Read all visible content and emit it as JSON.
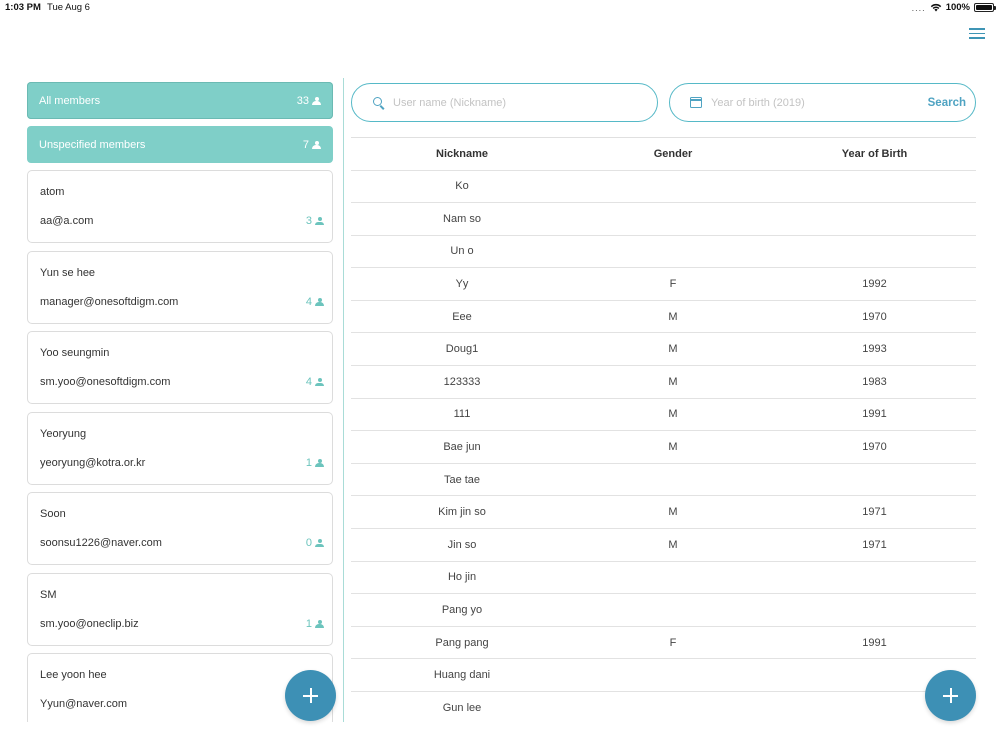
{
  "status_bar": {
    "time": "1:03 PM",
    "date": "Tue Aug 6",
    "battery": "100%",
    "signal": "....",
    "icons": [
      "wifi-icon",
      "battery-icon"
    ]
  },
  "header": {
    "menu_icon": "hamburger-menu-icon"
  },
  "groups": {
    "all": {
      "label": "All members",
      "count": "33"
    },
    "unspecified": {
      "label": "Unspecified members",
      "count": "7"
    }
  },
  "members": [
    {
      "name": "atom",
      "email": "aa@a.com",
      "count": "3"
    },
    {
      "name": "Yun se hee",
      "email": "manager@onesoftdigm.com",
      "count": "4"
    },
    {
      "name": "Yoo seungmin",
      "email": "sm.yoo@onesoftdigm.com",
      "count": "4"
    },
    {
      "name": "Yeoryung",
      "email": "yeoryung@kotra.or.kr",
      "count": "1"
    },
    {
      "name": "Soon",
      "email": "soonsu1226@naver.com",
      "count": "0"
    },
    {
      "name": "SM",
      "email": "sm.yoo@oneclip.biz",
      "count": "1"
    },
    {
      "name": "Lee yoon hee",
      "email": "Yyun@naver.com",
      "count": ""
    }
  ],
  "search": {
    "name_placeholder": "User name (Nickname)",
    "year_placeholder": "Year of birth (2019)",
    "button_label": "Search"
  },
  "table": {
    "headers": {
      "nickname": "Nickname",
      "gender": "Gender",
      "year": "Year of Birth"
    },
    "rows": [
      {
        "nickname": "Ko",
        "gender": "",
        "year": ""
      },
      {
        "nickname": "Nam so",
        "gender": "",
        "year": ""
      },
      {
        "nickname": "Un o",
        "gender": "",
        "year": ""
      },
      {
        "nickname": "Yy",
        "gender": "F",
        "year": "1992"
      },
      {
        "nickname": "Eee",
        "gender": "M",
        "year": "1970"
      },
      {
        "nickname": "Doug1",
        "gender": "M",
        "year": "1993"
      },
      {
        "nickname": "123333",
        "gender": "M",
        "year": "1983"
      },
      {
        "nickname": "111",
        "gender": "M",
        "year": "1991"
      },
      {
        "nickname": "Bae jun",
        "gender": "M",
        "year": "1970"
      },
      {
        "nickname": "Tae tae",
        "gender": "",
        "year": ""
      },
      {
        "nickname": "Kim jin so",
        "gender": "M",
        "year": "1971"
      },
      {
        "nickname": "Jin so",
        "gender": "M",
        "year": "1971"
      },
      {
        "nickname": "Ho jin",
        "gender": "",
        "year": ""
      },
      {
        "nickname": "Pang yo",
        "gender": "",
        "year": ""
      },
      {
        "nickname": "Pang pang",
        "gender": "F",
        "year": "1991"
      },
      {
        "nickname": "Huang dani",
        "gender": "",
        "year": ""
      },
      {
        "nickname": "Gun lee",
        "gender": "",
        "year": ""
      }
    ]
  },
  "colors": {
    "accent": "#3d90b5",
    "teal": "#7fcfc8",
    "teal_text": "#6cc4bd",
    "border": "#56b9c7"
  },
  "fab_icons": [
    "plus-icon",
    "plus-icon"
  ]
}
